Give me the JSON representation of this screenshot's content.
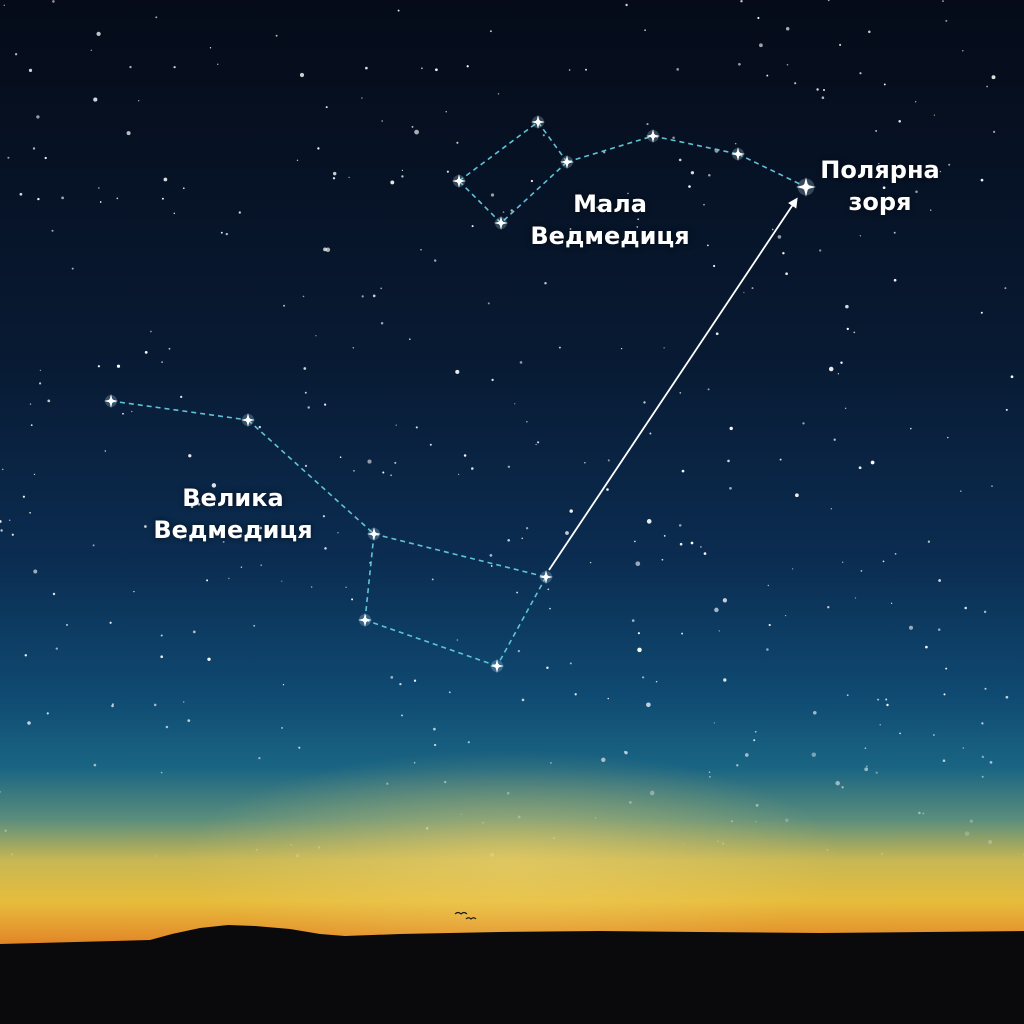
{
  "labels": {
    "little_dipper": [
      "Мала",
      "Ведмедиця"
    ],
    "big_dipper": [
      "Велика",
      "Ведмедиця"
    ],
    "polaris": [
      "Полярна",
      "зоря"
    ]
  },
  "colors": {
    "sky_top": "#060d1c",
    "sky_mid": "#0c2a4e",
    "sky_low": "#155a82",
    "glow_yellow": "#e9c24a",
    "glow_orange": "#e38a2a",
    "ground": "#0a0a0c",
    "constellation_line": "#5fc3d8",
    "label_text": "#ffffff"
  }
}
